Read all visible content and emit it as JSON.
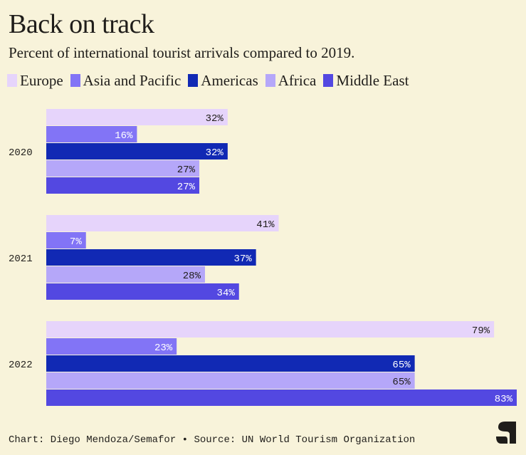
{
  "chart_data": {
    "type": "bar",
    "orientation": "horizontal",
    "title": "Back on track",
    "subtitle": "Percent of international tourist arrivals compared to 2019.",
    "categories": [
      "2020",
      "2021",
      "2022"
    ],
    "series": [
      {
        "name": "Europe",
        "color": "#e6d4fb",
        "label_color": "#1f1d1a",
        "values": [
          32,
          41,
          79
        ]
      },
      {
        "name": "Asia and Pacific",
        "color": "#8274f6",
        "label_color": "#ffffff",
        "values": [
          16,
          7,
          23
        ]
      },
      {
        "name": "Americas",
        "color": "#1129b4",
        "label_color": "#ffffff",
        "values": [
          32,
          37,
          65
        ]
      },
      {
        "name": "Africa",
        "color": "#b5a7f9",
        "label_color": "#1f1d1a",
        "values": [
          27,
          28,
          65
        ]
      },
      {
        "name": "Middle East",
        "color": "#5348e1",
        "label_color": "#ffffff",
        "values": [
          27,
          34,
          83
        ]
      }
    ],
    "value_suffix": "%",
    "legend": "top-left",
    "grid": false
  },
  "footer": "Chart: Diego Mendoza/Semafor • Source: UN World Tourism Organization",
  "logo_text": "S",
  "background": "#f8f3da"
}
